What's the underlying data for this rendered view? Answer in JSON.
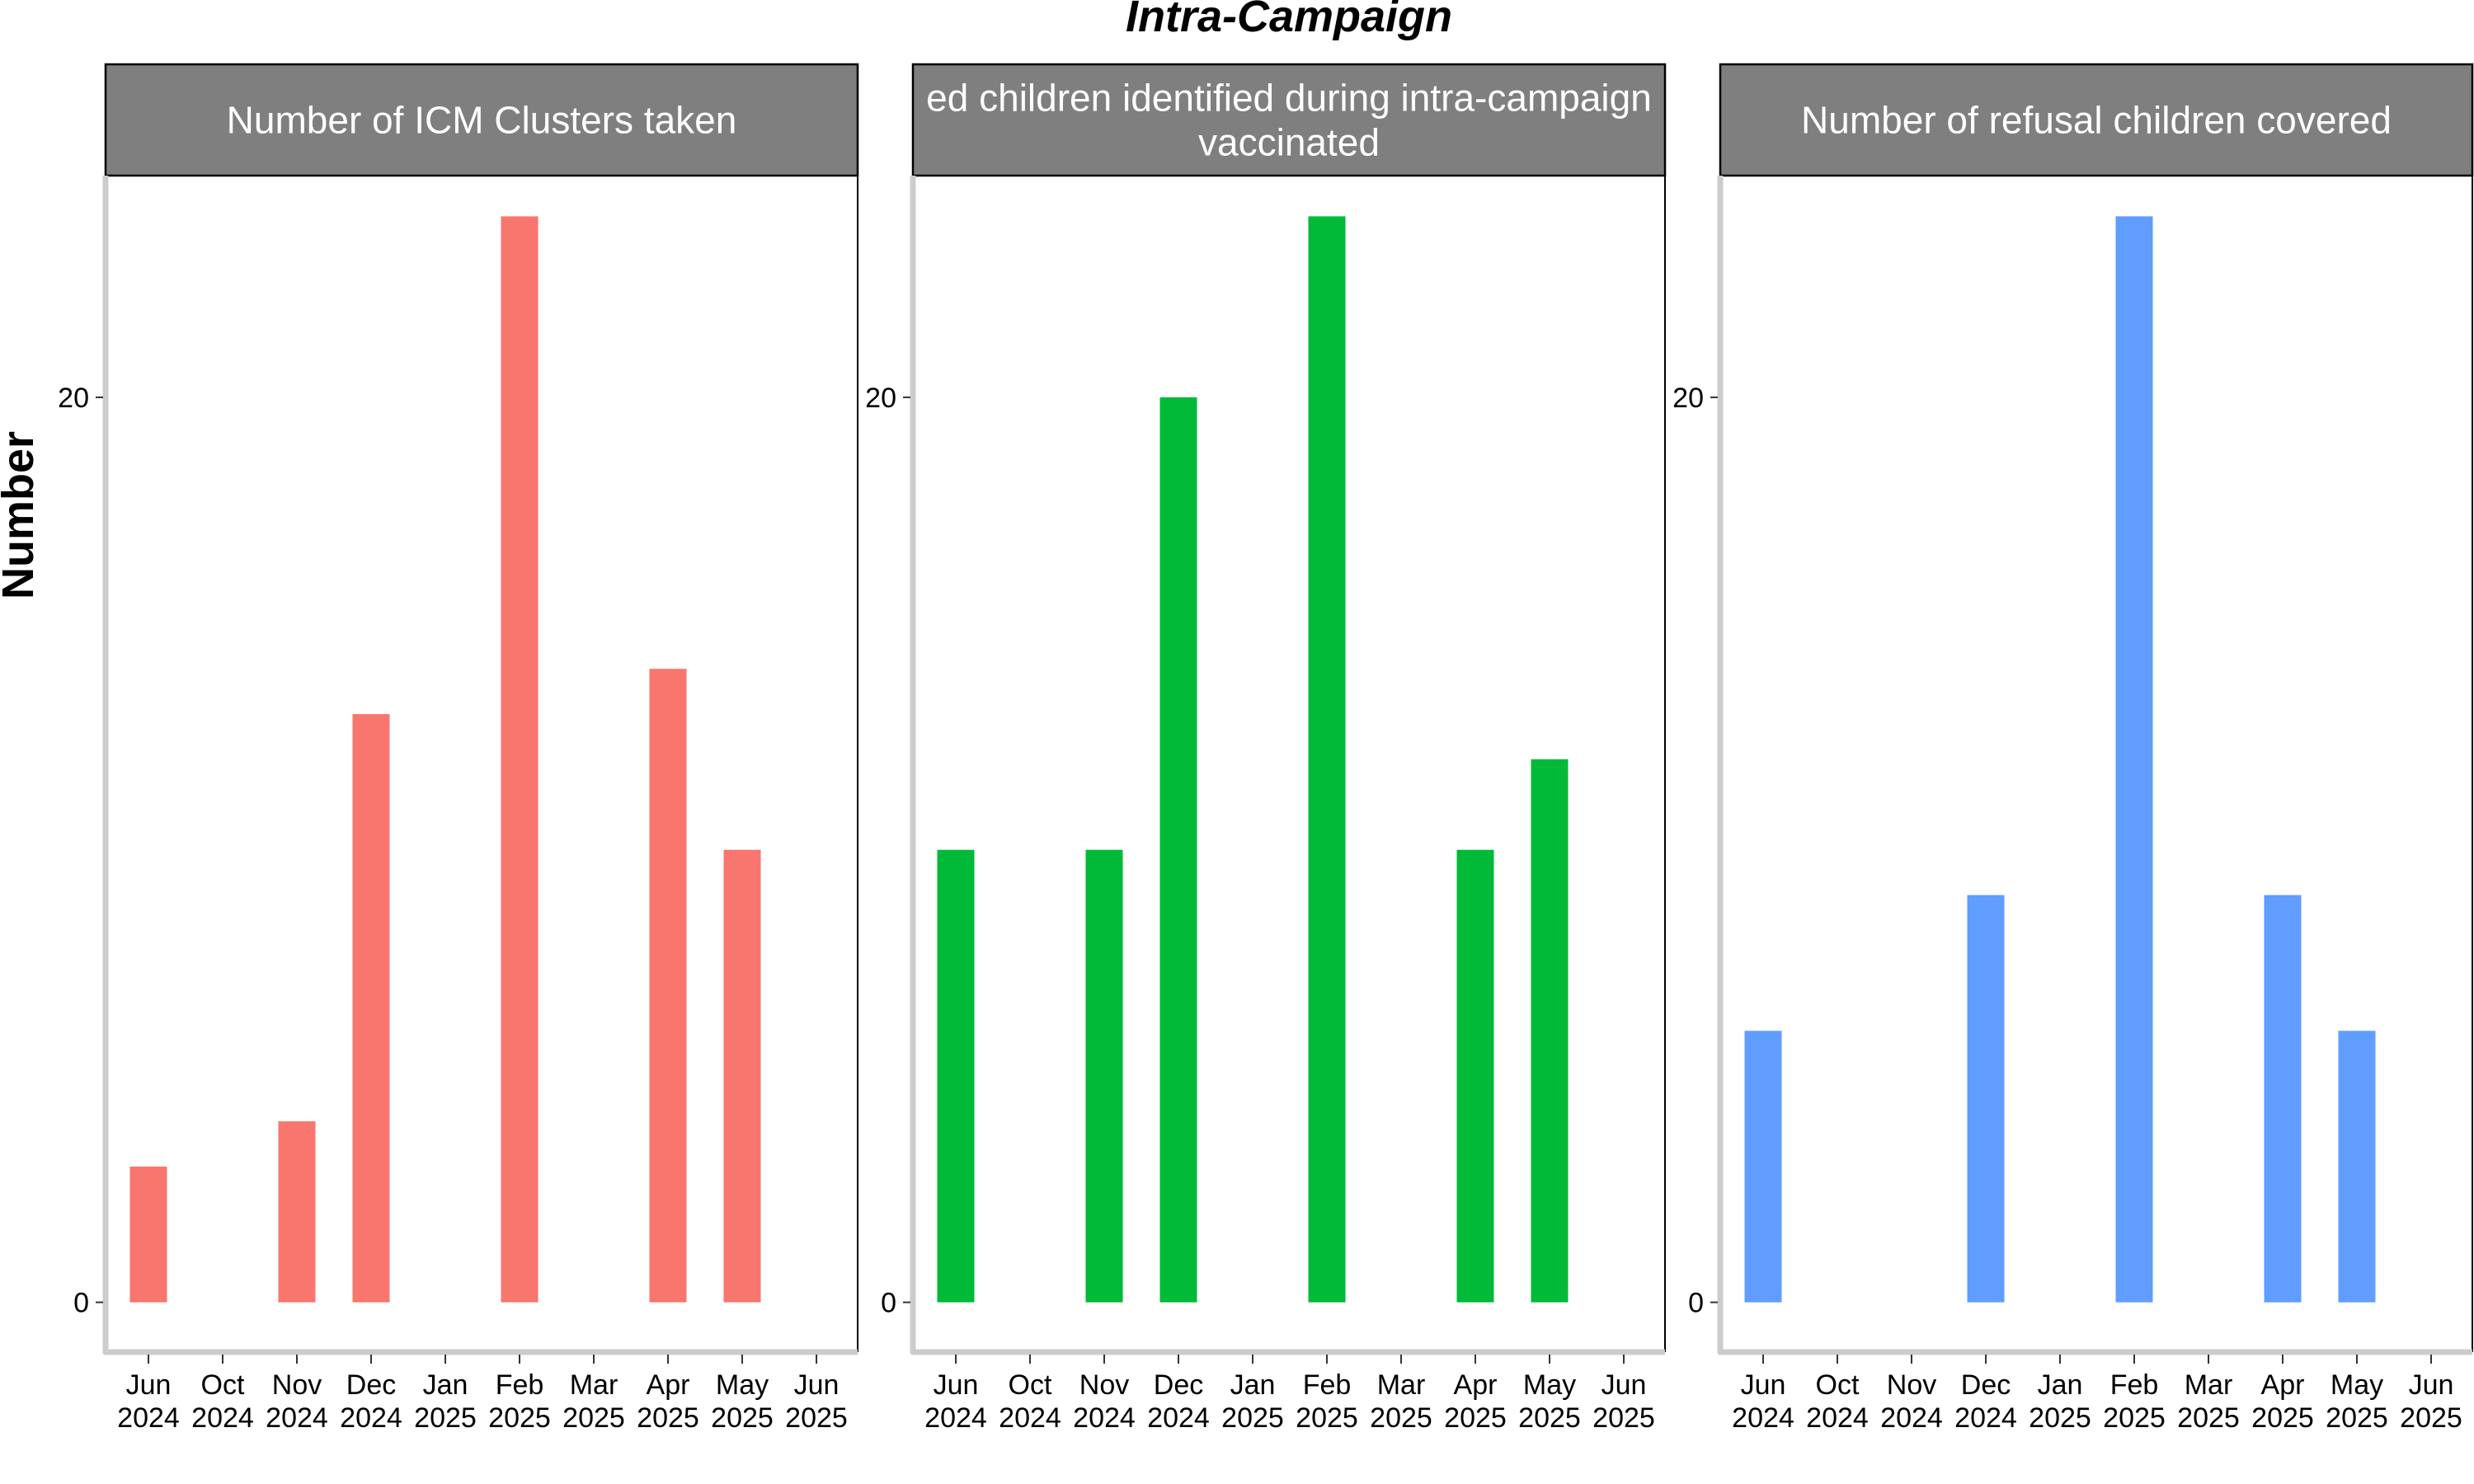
{
  "chart_data": {
    "type": "bar",
    "title": "Intra-Campaign",
    "ylabel": "Number",
    "xlabel": "",
    "x_ticks": [
      {
        "month": "Jun",
        "year": "2024"
      },
      {
        "month": "Oct",
        "year": "2024"
      },
      {
        "month": "Nov",
        "year": "2024"
      },
      {
        "month": "Dec",
        "year": "2024"
      },
      {
        "month": "Jan",
        "year": "2025"
      },
      {
        "month": "Feb",
        "year": "2025"
      },
      {
        "month": "Mar",
        "year": "2025"
      },
      {
        "month": "Apr",
        "year": "2025"
      },
      {
        "month": "May",
        "year": "2025"
      },
      {
        "month": "Jun",
        "year": "2025"
      }
    ],
    "ylim": [
      -1.1,
      24.9
    ],
    "y_ticks": [
      0,
      20
    ],
    "grid": false,
    "legend": "none",
    "panels": [
      {
        "strip": [
          "Number of ICM Clusters taken"
        ],
        "color": "#F8766D",
        "bars": [
          {
            "x": "Jun 2024",
            "value": 3
          },
          {
            "x": "Nov 2024",
            "value": 4
          },
          {
            "x": "Dec 2024",
            "value": 13
          },
          {
            "x": "Feb 2025",
            "value": 24
          },
          {
            "x": "Apr 2025",
            "value": 14
          },
          {
            "x": "May 2025",
            "value": 10
          }
        ]
      },
      {
        "strip": [
          "ed children identified during intra-campaign",
          "vaccinated"
        ],
        "color": "#00BA38",
        "bars": [
          {
            "x": "Jun 2024",
            "value": 10
          },
          {
            "x": "Nov 2024",
            "value": 10
          },
          {
            "x": "Dec 2024",
            "value": 20
          },
          {
            "x": "Feb 2025",
            "value": 24
          },
          {
            "x": "Apr 2025",
            "value": 10
          },
          {
            "x": "May 2025",
            "value": 12
          }
        ]
      },
      {
        "strip": [
          "Number of refusal children covered"
        ],
        "color": "#619CFF",
        "bars": [
          {
            "x": "Jun 2024",
            "value": 6
          },
          {
            "x": "Dec 2024",
            "value": 9
          },
          {
            "x": "Feb 2025",
            "value": 24
          },
          {
            "x": "Apr 2025",
            "value": 9
          },
          {
            "x": "May 2025",
            "value": 6
          }
        ]
      }
    ]
  }
}
